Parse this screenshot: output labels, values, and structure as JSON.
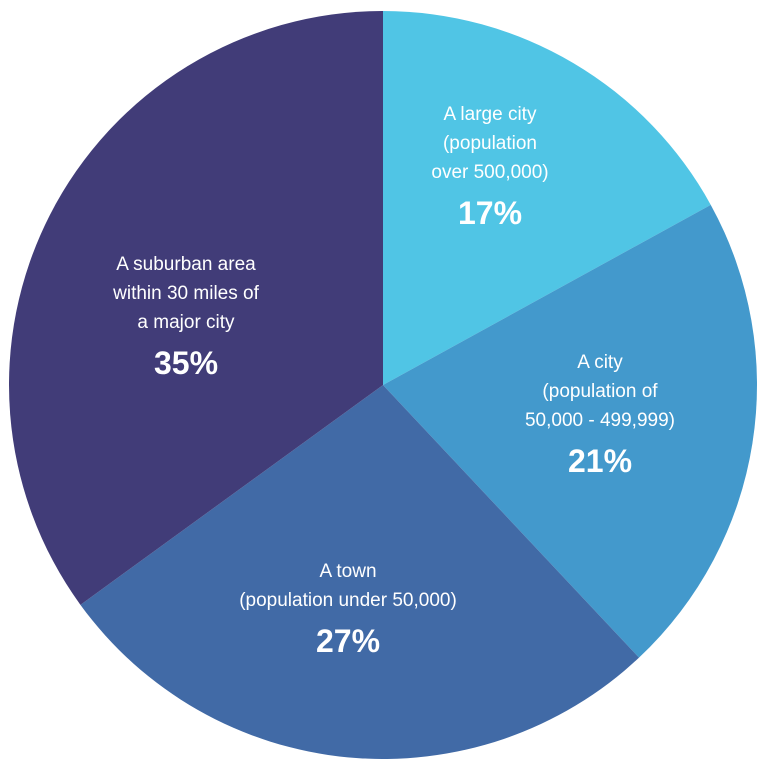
{
  "chart_data": {
    "type": "pie",
    "title": "",
    "slices": [
      {
        "label_lines": [
          "A large city",
          "(population",
          "over 500,000)"
        ],
        "value": 17,
        "value_label": "17%",
        "color": "#50c5e5"
      },
      {
        "label_lines": [
          "A city",
          "(population of",
          "50,000 - 499,999)"
        ],
        "value": 21,
        "value_label": "21%",
        "color": "#4399cc"
      },
      {
        "label_lines": [
          "A town",
          "(population under 50,000)"
        ],
        "value": 27,
        "value_label": "27%",
        "color": "#416aa6"
      },
      {
        "label_lines": [
          "A suburban area",
          "within 30 miles of",
          "a major city"
        ],
        "value": 35,
        "value_label": "35%",
        "color": "#413c78"
      }
    ]
  }
}
